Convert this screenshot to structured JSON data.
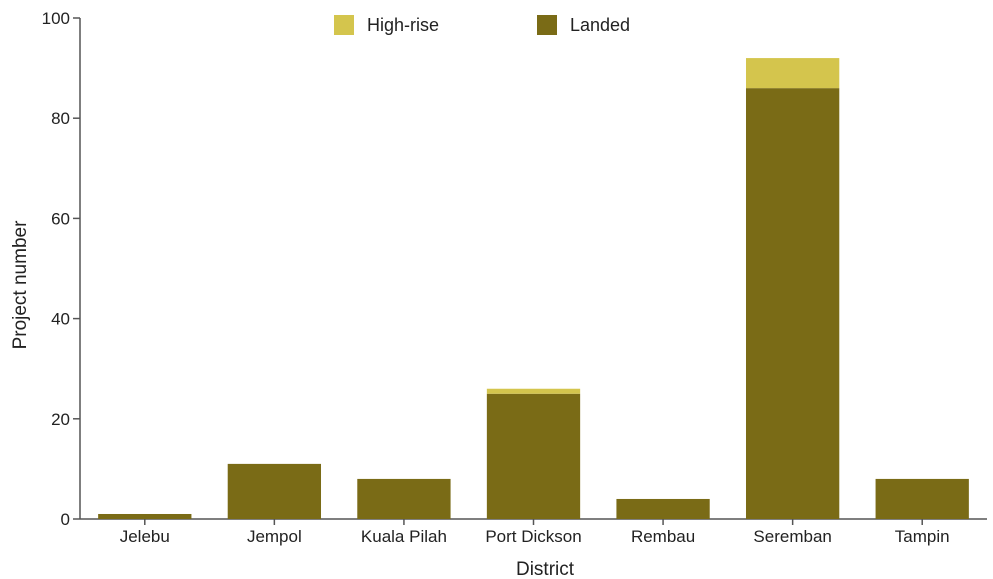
{
  "chart_data": {
    "type": "bar",
    "stacked": true,
    "title": "",
    "xlabel": "District",
    "ylabel": "Project number",
    "ylim": [
      0,
      100
    ],
    "yticks": [
      0,
      20,
      40,
      60,
      80,
      100
    ],
    "categories": [
      "Jelebu",
      "Jempol",
      "Kuala Pilah",
      "Port Dickson",
      "Rembau",
      "Seremban",
      "Tampin"
    ],
    "series": [
      {
        "name": "Landed",
        "color": "#7a6b16",
        "values": [
          1,
          11,
          8,
          25,
          4,
          86,
          8
        ]
      },
      {
        "name": "High-rise",
        "color": "#d4c54d",
        "values": [
          0,
          0,
          0,
          1,
          0,
          6,
          0
        ]
      }
    ],
    "legend": {
      "position": "top-center",
      "order": [
        "High-rise",
        "Landed"
      ]
    },
    "grid": false
  }
}
